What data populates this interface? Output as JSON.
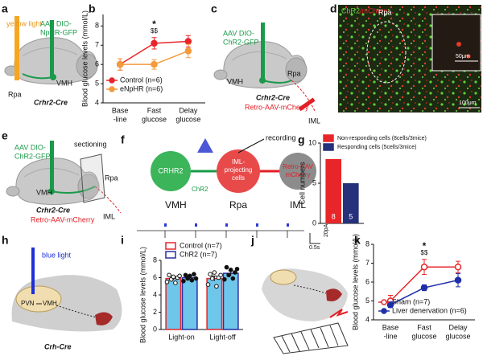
{
  "panel_letters": [
    "a",
    "b",
    "c",
    "d",
    "e",
    "f",
    "g",
    "h",
    "i",
    "j",
    "k"
  ],
  "a": {
    "light": "yellow light",
    "virus": [
      "AAV DIO-",
      "NpHR-GFP"
    ],
    "rpa": "Rpa",
    "vmh": "VMH",
    "mouse": "Crhr2-Cre"
  },
  "c": {
    "virus": [
      "AAV DIO-",
      "ChR2-GFP"
    ],
    "rpa": "Rpa",
    "vmh": "VMH",
    "mouse": "Crhr2-Cre",
    "retro": "Retro-AAV-mCherry",
    "iml": "IML"
  },
  "d": {
    "label_green": "ChR2",
    "label_red": "/mCherry",
    "rpa": "Rpa",
    "scale_inset": "50μm",
    "scale_main": "100μm"
  },
  "e": {
    "virus": [
      "AAV DIO-",
      "ChR2-GFP"
    ],
    "section": "sectioning",
    "rpa": "Rpa",
    "vmh": "VMH",
    "mouse": "Crhr2-Cre",
    "retro": "Retro-AAV-mCherry",
    "iml": "IML"
  },
  "f": {
    "recording": "recording",
    "crhr2": "CRHR2",
    "chr2": "ChR2",
    "iml_cells": [
      "IML-",
      "projecting",
      "cells"
    ],
    "retro": [
      "Retro-AAV",
      "mCherry"
    ],
    "vmh": "VMH",
    "rpa": "Rpa",
    "iml": "IML",
    "time_scale": "0.5s",
    "current_scale": "20pA"
  },
  "h": {
    "light": "blue light",
    "pvn": "PVN",
    "vmh": "VMH",
    "mouse": "Crh-Cre"
  },
  "chart_data": [
    {
      "type": "line",
      "ylabel": "Blood glucose levels (mmol/L)",
      "categories": [
        [
          "Base",
          "-line"
        ],
        [
          "Fast",
          "glucose"
        ],
        [
          "Delay",
          "glucose"
        ]
      ],
      "ylim": [
        4,
        8.6
      ],
      "yticks": [
        4,
        5,
        6,
        7,
        8
      ],
      "annotations": [
        "*",
        "$$"
      ],
      "legend": "lower-left",
      "series": [
        {
          "name": "Control (n=6)",
          "color": "#e8262a",
          "marker": "filled",
          "values": [
            6.0,
            7.1,
            7.2
          ],
          "errors": [
            0.3,
            0.3,
            0.3
          ]
        },
        {
          "name": "eNpHR (n=6)",
          "color": "#f39a3c",
          "marker": "filled",
          "values": [
            6.0,
            6.0,
            6.7
          ],
          "errors": [
            0.3,
            0.25,
            0.35
          ]
        }
      ]
    },
    {
      "type": "bar",
      "ylabel": "Cell numbers",
      "ylim": [
        0,
        10
      ],
      "yticks": [
        0,
        5,
        10
      ],
      "legend": "upper-right",
      "series": [
        {
          "name": "Non-responding cells (8cells/3mice)",
          "color": "#e8262a",
          "values": [
            8
          ]
        },
        {
          "name": "Responding cells (5cells/3mice)",
          "color": "#25317a",
          "values": [
            5
          ]
        }
      ]
    },
    {
      "type": "bar",
      "ylabel": "Blood glucose levels (mmol/L)",
      "categories": [
        [
          "Light-on"
        ],
        [
          "Light-off"
        ]
      ],
      "ylim": [
        0,
        8
      ],
      "yticks": [
        0,
        2,
        4,
        6,
        8
      ],
      "bar_fill": "#6ec6ea",
      "legend": "top",
      "series": [
        {
          "name": "Control (n=7)",
          "color": "#e8262a",
          "values": [
            5.9,
            5.9
          ],
          "errors": [
            0.2,
            0.3
          ],
          "points": [
            [
              5.5,
              6.3,
              5.8,
              6.1,
              5.4,
              6.0,
              6.2
            ],
            [
              5.2,
              6.4,
              5.9,
              6.6,
              5.0,
              6.0,
              6.3
            ]
          ]
        },
        {
          "name": "ChR2 (n=7)",
          "color": "#2b2f9e",
          "values": [
            6.0,
            6.5
          ],
          "errors": [
            0.2,
            0.3
          ],
          "points": [
            [
              5.6,
              6.3,
              5.9,
              6.2,
              5.7,
              6.4,
              5.9
            ],
            [
              5.8,
              7.2,
              6.3,
              6.9,
              5.9,
              6.6,
              7.0
            ]
          ]
        }
      ]
    },
    {
      "type": "line",
      "ylabel": "Blood glucose levels (mmol/L)",
      "categories": [
        [
          "Base",
          "-line"
        ],
        [
          "Fast",
          "glucose"
        ],
        [
          "Delay",
          "glucose"
        ]
      ],
      "ylim": [
        4,
        8
      ],
      "yticks": [
        4,
        5,
        6,
        7,
        8
      ],
      "annotations": [
        "*",
        "$$"
      ],
      "legend": "lower-right",
      "series": [
        {
          "name": "Sham (n=7)",
          "color": "#e8262a",
          "marker": "open",
          "values": [
            5.0,
            6.8,
            6.8
          ],
          "errors": [
            0.3,
            0.4,
            0.3
          ]
        },
        {
          "name": "Liver denervation (n=6)",
          "color": "#1f2fa8",
          "marker": "filled",
          "values": [
            4.8,
            5.7,
            6.1
          ],
          "errors": [
            0.15,
            0.15,
            0.35
          ]
        }
      ]
    }
  ]
}
